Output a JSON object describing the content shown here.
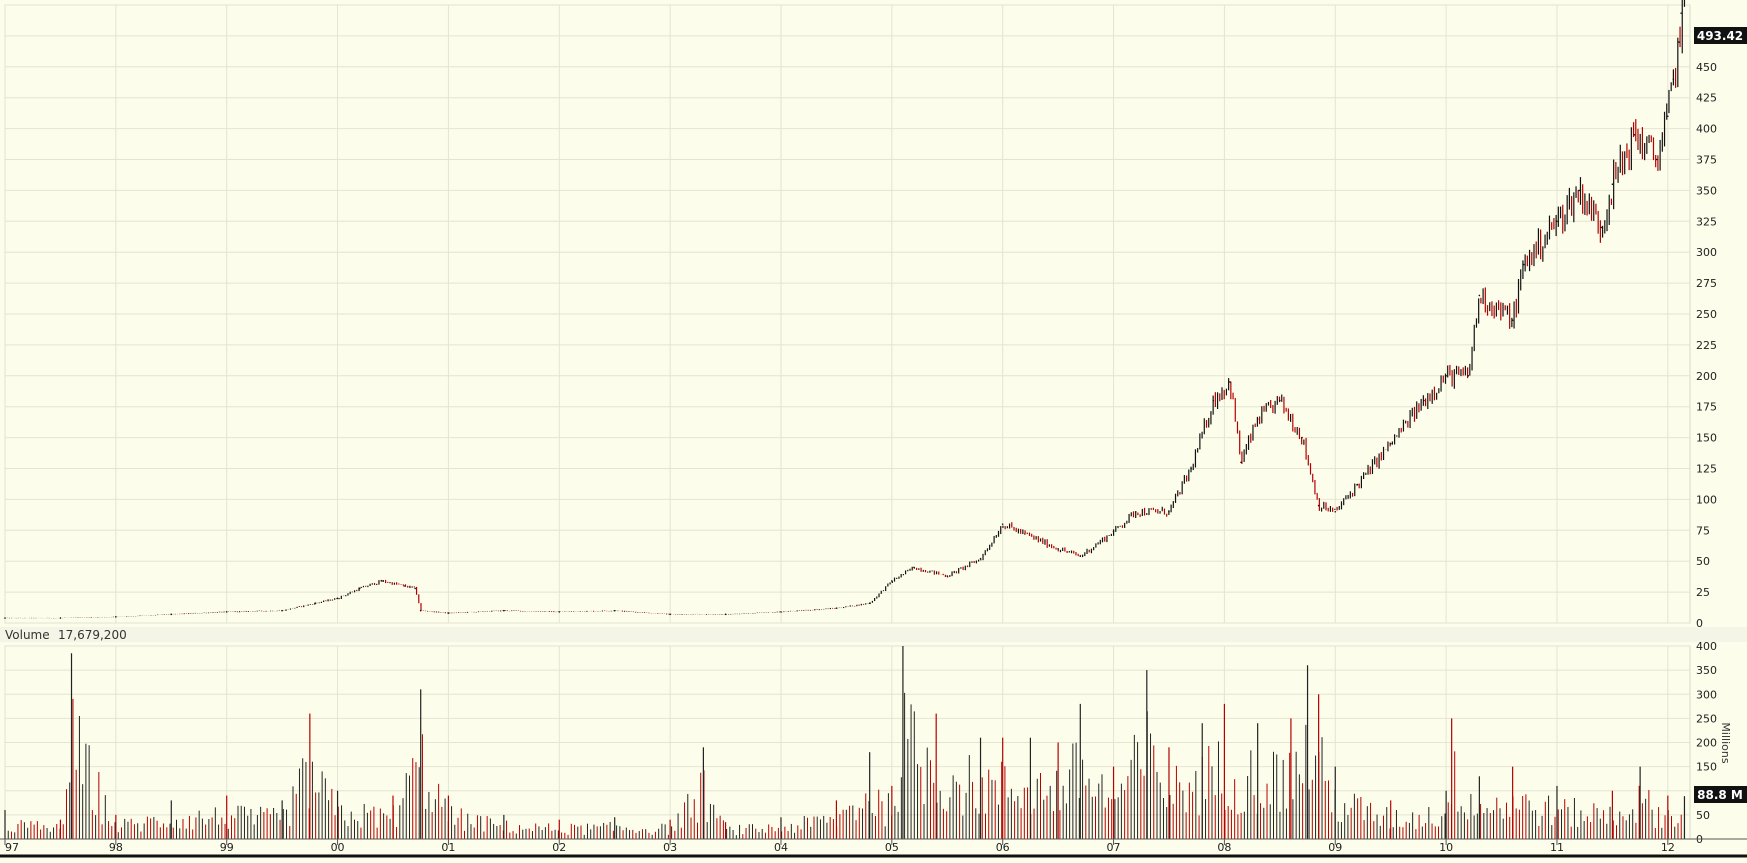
{
  "chart_data": [
    {
      "type": "candlestick",
      "panel": "price",
      "x_tick_labels": [
        "97",
        "98",
        "99",
        "00",
        "01",
        "02",
        "03",
        "04",
        "05",
        "06",
        "07",
        "08",
        "09",
        "10",
        "11",
        "12"
      ],
      "x_range": [
        1997.0,
        2012.2
      ],
      "ylim": [
        0,
        500
      ],
      "y_ticks": [
        0,
        25,
        50,
        75,
        100,
        125,
        150,
        175,
        200,
        225,
        250,
        275,
        300,
        325,
        350,
        375,
        400,
        425,
        450,
        475,
        500
      ],
      "last_value_label": "493.42",
      "grid": true,
      "colors": {
        "up": "#111111",
        "down": "#b40000",
        "last_badge_bg": "#111111",
        "last_badge_text": "#ffffff"
      },
      "series": [
        {
          "x": [
            1997.0,
            1997.5,
            1998.0,
            1998.5,
            1999.0,
            1999.5,
            1999.8,
            2000.0,
            2000.2,
            2000.4,
            2000.6,
            2000.7,
            2000.75,
            2001.0,
            2001.5,
            2002.0,
            2002.5,
            2003.0,
            2003.5,
            2004.0,
            2004.5,
            2004.8,
            2005.0,
            2005.2,
            2005.5,
            2005.8,
            2006.0,
            2006.2,
            2006.5,
            2006.7,
            2007.0,
            2007.2,
            2007.5,
            2007.7,
            2007.9,
            2008.05,
            2008.15,
            2008.3,
            2008.5,
            2008.7,
            2008.85,
            2009.0,
            2009.2,
            2009.5,
            2009.8,
            2010.0,
            2010.2,
            2010.3,
            2010.6,
            2010.7,
            2011.0,
            2011.2,
            2011.4,
            2011.5,
            2011.7,
            2011.9,
            2012.0,
            2012.05,
            2012.1,
            2012.12
          ],
          "close": [
            4,
            4,
            5,
            7,
            9,
            10,
            16,
            20,
            28,
            34,
            30,
            28,
            10,
            8,
            10,
            9,
            10,
            7,
            7,
            9,
            12,
            16,
            34,
            45,
            38,
            52,
            80,
            72,
            60,
            54,
            74,
            90,
            90,
            125,
            180,
            195,
            130,
            165,
            180,
            150,
            95,
            90,
            112,
            145,
            180,
            200,
            200,
            265,
            245,
            290,
            325,
            350,
            320,
            355,
            395,
            375,
            410,
            440,
            470,
            493.42
          ]
        }
      ]
    },
    {
      "type": "bar",
      "panel": "volume",
      "label_prefix": "Volume",
      "current_volume": "17,679,200",
      "unit_label": "Millions",
      "last_value_label": "88.8 M",
      "ylim": [
        0,
        400
      ],
      "y_ticks": [
        0,
        50,
        100,
        150,
        200,
        250,
        300,
        350,
        400
      ],
      "grid": true,
      "colors": {
        "up": "#222222",
        "down": "#b40000"
      },
      "series": [
        {
          "x": [
            1997.0,
            1997.5,
            1997.6,
            1998.0,
            1998.5,
            1999.0,
            1999.5,
            1999.75,
            2000.0,
            2000.5,
            2000.75,
            2001.0,
            2001.5,
            2002.0,
            2002.5,
            2003.0,
            2003.3,
            2003.5,
            2004.0,
            2004.5,
            2004.8,
            2005.0,
            2005.1,
            2005.4,
            2005.8,
            2006.0,
            2006.25,
            2006.5,
            2006.7,
            2007.0,
            2007.3,
            2007.5,
            2007.8,
            2008.0,
            2008.3,
            2008.6,
            2008.75,
            2008.85,
            2009.0,
            2009.5,
            2010.0,
            2010.05,
            2010.3,
            2010.6,
            2011.0,
            2011.5,
            2011.75,
            2012.0,
            2012.15
          ],
          "values": [
            60,
            40,
            385,
            50,
            80,
            90,
            80,
            260,
            100,
            90,
            310,
            90,
            50,
            40,
            45,
            40,
            190,
            35,
            45,
            80,
            180,
            110,
            400,
            260,
            210,
            210,
            210,
            200,
            280,
            150,
            350,
            190,
            240,
            280,
            240,
            250,
            360,
            300,
            150,
            80,
            100,
            250,
            130,
            150,
            110,
            100,
            150,
            90,
            88.8
          ]
        }
      ]
    }
  ]
}
